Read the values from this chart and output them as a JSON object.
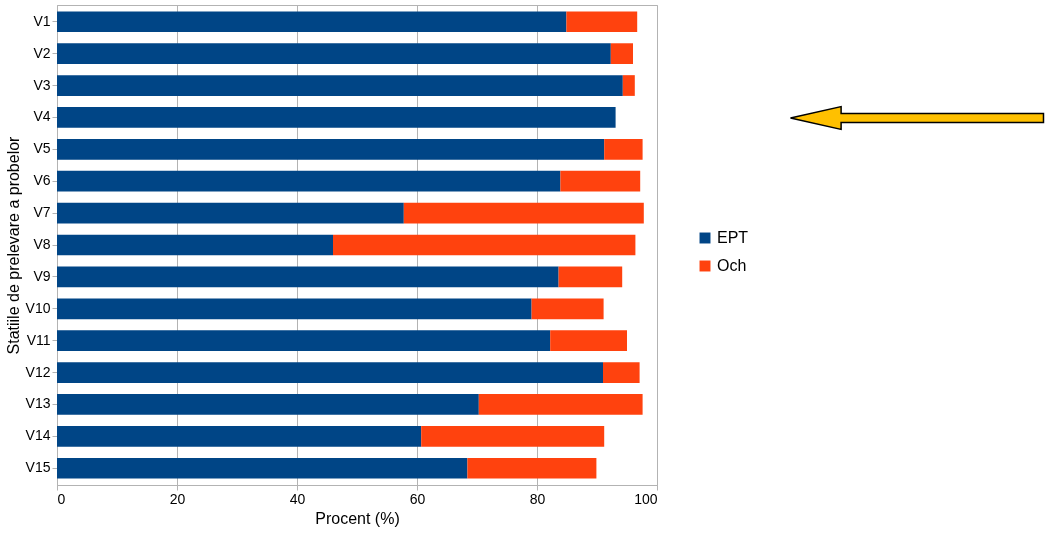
{
  "chart_data": {
    "type": "bar",
    "orientation": "horizontal",
    "stacked": true,
    "categories": [
      "V1",
      "V2",
      "V3",
      "V4",
      "V5",
      "V6",
      "V7",
      "V8",
      "V9",
      "V10",
      "V11",
      "V12",
      "V13",
      "V14",
      "V15"
    ],
    "series": [
      {
        "name": "EPT",
        "color": "#004586",
        "values": [
          84.9,
          92.3,
          94.3,
          93.1,
          91.2,
          83.9,
          57.8,
          46.0,
          83.6,
          79.1,
          82.2,
          91.0,
          70.3,
          60.7,
          68.4
        ]
      },
      {
        "name": "Och",
        "color": "#ff420e",
        "values": [
          11.8,
          3.7,
          2.0,
          null,
          6.4,
          13.3,
          40.0,
          50.4,
          10.6,
          12.0,
          12.8,
          6.1,
          27.3,
          30.5,
          21.5
        ]
      }
    ],
    "xlim": [
      0,
      100
    ],
    "xticks": [
      0,
      20,
      40,
      60,
      80,
      100
    ],
    "xlabel": "Procent (%)",
    "ylabel": "Statiile de prelevare a probelor",
    "grid": "x",
    "legend": "right"
  }
}
